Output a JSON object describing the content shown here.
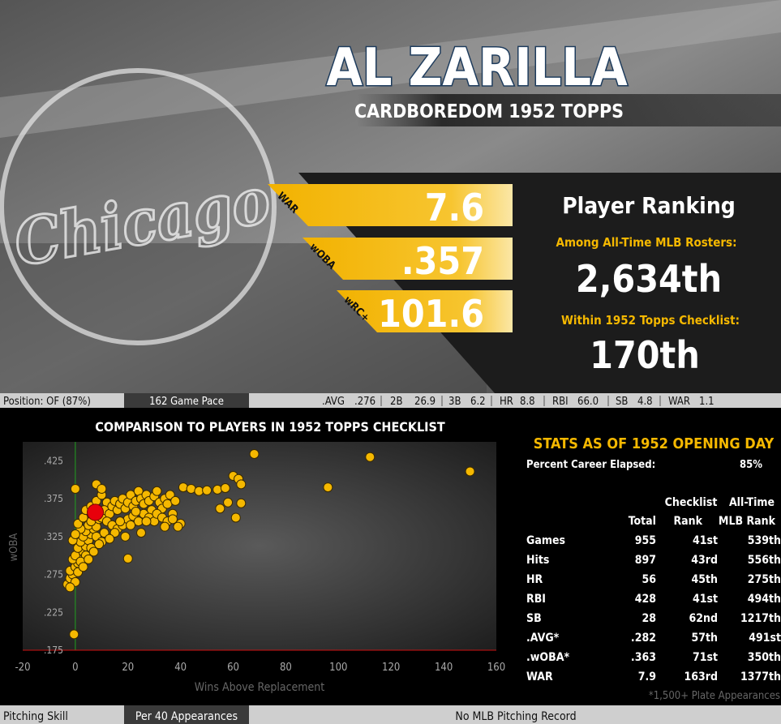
{
  "header": {
    "name": "AL ZARILLA",
    "subtitle": "CARDBOREDOM 1952 TOPPS",
    "logo": "Chicago"
  },
  "metrics": [
    {
      "label": "WAR",
      "value": "7.6"
    },
    {
      "label": "wOBA",
      "value": ".357"
    },
    {
      "label": "wRC+",
      "value": "101.6"
    }
  ],
  "ranking": {
    "title": "Player Ranking",
    "all_time_label": "Among All-Time MLB Rosters:",
    "all_time_rank": "2,634th",
    "checklist_label": "Within 1952 Topps Checklist:",
    "checklist_rank": "170th"
  },
  "info_bar": {
    "position": "Position: OF (87%)",
    "pace_label": "162 Game Pace",
    "pace_stats": [
      [
        ".AVG",
        ".276"
      ],
      [
        "2B",
        "26.9"
      ],
      [
        "3B",
        "6.2"
      ],
      [
        "HR",
        "8.8"
      ],
      [
        "RBI",
        "66.0"
      ],
      [
        "SB",
        "4.8"
      ],
      [
        "WAR",
        "1.1"
      ]
    ]
  },
  "chart_data": {
    "type": "scatter",
    "title": "COMPARISON TO PLAYERS IN 1952 TOPPS CHECKLIST",
    "x_label": "Wins Above Replacement",
    "y_label": "wOBA",
    "xlim": [
      -20,
      160
    ],
    "ylim": [
      0.175,
      0.45
    ],
    "xticks": [
      -20,
      0,
      20,
      40,
      60,
      80,
      100,
      120,
      140,
      160
    ],
    "yticks": [
      {
        "value": 0.175,
        "label": ".175"
      },
      {
        "value": 0.225,
        "label": ".225"
      },
      {
        "value": 0.275,
        "label": ".275"
      },
      {
        "value": 0.325,
        "label": ".325"
      },
      {
        "value": 0.375,
        "label": ".375"
      },
      {
        "value": 0.425,
        "label": ".425"
      }
    ],
    "series": [
      {
        "color": "#f5b800",
        "x": [
          -3,
          -2,
          -1,
          -2,
          0,
          1,
          -1,
          2,
          0,
          3,
          1,
          4,
          2,
          5,
          3,
          6,
          4,
          7,
          5,
          8,
          6,
          9,
          10,
          2,
          -1,
          0,
          1,
          3,
          4,
          6,
          8,
          10,
          12,
          11,
          13,
          14,
          15,
          16,
          17,
          18,
          19,
          20,
          21,
          22,
          23,
          24,
          25,
          26,
          27,
          28,
          29,
          30,
          31,
          32,
          33,
          34,
          35,
          36,
          37,
          38,
          12,
          14,
          16,
          18,
          20,
          22,
          24,
          26,
          28,
          30,
          15,
          19,
          25,
          8,
          10,
          6,
          4,
          2,
          0,
          1,
          3,
          5,
          7,
          9,
          11,
          13,
          17,
          21,
          23,
          27,
          31,
          33,
          35,
          37,
          40,
          39,
          34,
          20,
          -0.5,
          -2,
          0,
          8,
          10,
          41,
          44,
          47,
          50,
          54,
          57,
          58,
          55,
          61,
          63,
          60,
          62,
          63,
          68,
          96,
          112,
          150
        ],
        "values": [
          0.262,
          0.27,
          0.275,
          0.28,
          0.285,
          0.29,
          0.295,
          0.298,
          0.3,
          0.305,
          0.31,
          0.312,
          0.318,
          0.32,
          0.325,
          0.328,
          0.332,
          0.335,
          0.34,
          0.338,
          0.345,
          0.348,
          0.35,
          0.335,
          0.32,
          0.328,
          0.342,
          0.35,
          0.36,
          0.365,
          0.372,
          0.38,
          0.37,
          0.36,
          0.355,
          0.365,
          0.372,
          0.36,
          0.368,
          0.375,
          0.362,
          0.37,
          0.38,
          0.365,
          0.372,
          0.385,
          0.375,
          0.368,
          0.38,
          0.372,
          0.36,
          0.378,
          0.385,
          0.37,
          0.362,
          0.375,
          0.368,
          0.38,
          0.355,
          0.372,
          0.345,
          0.34,
          0.335,
          0.34,
          0.348,
          0.352,
          0.345,
          0.355,
          0.35,
          0.345,
          0.33,
          0.325,
          0.33,
          0.325,
          0.318,
          0.31,
          0.3,
          0.292,
          0.265,
          0.278,
          0.285,
          0.295,
          0.305,
          0.315,
          0.33,
          0.322,
          0.345,
          0.34,
          0.358,
          0.345,
          0.355,
          0.35,
          0.345,
          0.348,
          0.342,
          0.338,
          0.338,
          0.296,
          0.196,
          0.258,
          0.388,
          0.394,
          0.388,
          0.39,
          0.388,
          0.385,
          0.386,
          0.387,
          0.389,
          0.37,
          0.362,
          0.35,
          0.369,
          0.405,
          0.401,
          0.394,
          0.434,
          0.39,
          0.43,
          0.411
        ]
      },
      {
        "color": "#e8000b",
        "x": [
          7.6
        ],
        "values": [
          0.357
        ]
      }
    ]
  },
  "stats": {
    "title": "STATS AS OF 1952 OPENING DAY",
    "elapsed_label": "Percent Career Elapsed:",
    "elapsed_value": "85%",
    "header_top": [
      "Checklist",
      "All-Time"
    ],
    "header_bottom": [
      "Total",
      "Rank",
      "MLB Rank"
    ],
    "rows": [
      [
        "Games",
        "955",
        "41st",
        "539th"
      ],
      [
        "Hits",
        "897",
        "43rd",
        "556th"
      ],
      [
        "HR",
        "56",
        "45th",
        "275th"
      ],
      [
        "RBI",
        "428",
        "41st",
        "494th"
      ],
      [
        "SB",
        "28",
        "62nd",
        "1217th"
      ],
      [
        ".AVG*",
        ".282",
        "57th",
        "491st"
      ],
      [
        ".wOBA*",
        ".363",
        "71st",
        "350th"
      ],
      [
        "WAR",
        "7.9",
        "163rd",
        "1377th"
      ]
    ],
    "footnote": "*1,500+ Plate Appearances"
  },
  "bottom_bar": {
    "section": "Pitching Skill",
    "mode": "Per 40 Appearances",
    "note": "No MLB Pitching Record"
  }
}
